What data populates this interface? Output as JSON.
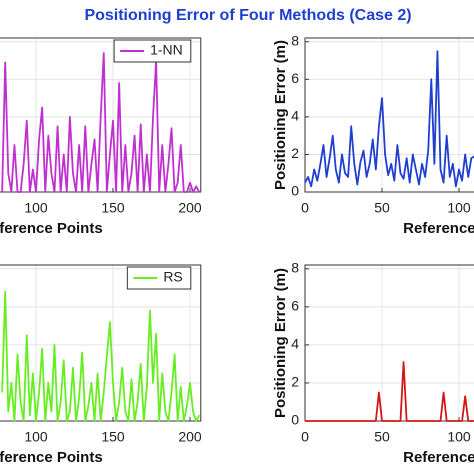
{
  "title": "Positioning Error of Four Methods (Case 2)",
  "chart_data": [
    {
      "type": "line",
      "xlabel": "Reference Points",
      "xlim": [
        0,
        207
      ],
      "ylim": [
        0,
        8.2
      ],
      "xticks": [
        100,
        150,
        200
      ],
      "yticks": [
        0,
        2,
        4,
        6,
        8
      ],
      "grid": true,
      "legend": "upper right",
      "x": [
        78,
        80,
        82,
        84,
        86,
        88,
        90,
        92,
        94,
        96,
        98,
        100,
        102,
        104,
        106,
        108,
        110,
        112,
        114,
        116,
        118,
        120,
        122,
        124,
        126,
        128,
        130,
        132,
        134,
        136,
        138,
        140,
        142,
        144,
        146,
        148,
        150,
        152,
        154,
        156,
        158,
        160,
        162,
        164,
        166,
        168,
        170,
        172,
        174,
        176,
        178,
        180,
        182,
        184,
        186,
        188,
        190,
        192,
        194,
        196,
        198,
        200,
        202,
        204,
        206
      ],
      "series": [
        {
          "name": "1-NN",
          "color": "#c030d0",
          "values": [
            0,
            6.9,
            1,
            0,
            2.5,
            0,
            0,
            1.5,
            3.8,
            0,
            1.2,
            0,
            2.8,
            4.5,
            0,
            3,
            1,
            0,
            3.5,
            0,
            2,
            0,
            4,
            1,
            0,
            2.5,
            0,
            3.5,
            0,
            1.5,
            2.8,
            0,
            4,
            7.4,
            0,
            2,
            3.8,
            0,
            5.8,
            0,
            2.5,
            0,
            1,
            3,
            0,
            3.6,
            0,
            2,
            0,
            4,
            7,
            0,
            2.5,
            0,
            1.5,
            3.4,
            0,
            0.5,
            2.5,
            0,
            0,
            0.5,
            0,
            0.3,
            0
          ]
        }
      ]
    },
    {
      "type": "line",
      "xlabel": "Reference Points",
      "ylabel": "Positioning Error (m)",
      "xlim": [
        0,
        207
      ],
      "ylim": [
        0,
        8.2
      ],
      "xticks": [
        0,
        50,
        100
      ],
      "yticks": [
        0,
        2,
        4,
        6,
        8
      ],
      "grid": true,
      "x": [
        0,
        2,
        4,
        6,
        8,
        10,
        12,
        14,
        16,
        18,
        20,
        22,
        24,
        26,
        28,
        30,
        32,
        34,
        36,
        38,
        40,
        42,
        44,
        46,
        48,
        50,
        52,
        54,
        56,
        58,
        60,
        62,
        64,
        66,
        68,
        70,
        72,
        74,
        76,
        78,
        80,
        82,
        84,
        86,
        88,
        90,
        92,
        94,
        96,
        98,
        100,
        102,
        104,
        106,
        108,
        110
      ],
      "series": [
        {
          "color": "#1f3fd0",
          "values": [
            0.5,
            0.8,
            0.3,
            1.2,
            0.6,
            1.5,
            2.5,
            0.8,
            1.8,
            3,
            1.2,
            0.5,
            2,
            1,
            0.8,
            3.5,
            1.5,
            0.4,
            1.6,
            2.2,
            0.8,
            1.5,
            2.8,
            1.2,
            3.5,
            5,
            2,
            0.9,
            1.5,
            0.6,
            2.5,
            1,
            0.7,
            1.8,
            0.5,
            2,
            1.2,
            0.4,
            1.5,
            0.8,
            2.2,
            6,
            1.5,
            7.5,
            1.2,
            0.5,
            3,
            0.8,
            1.5,
            0.3,
            1.2,
            0.6,
            2,
            0.8,
            1.8,
            1.9
          ]
        }
      ]
    },
    {
      "type": "line",
      "xlabel": "Reference Points",
      "xlim": [
        0,
        207
      ],
      "ylim": [
        0,
        8.2
      ],
      "xticks": [
        100,
        150,
        200
      ],
      "yticks": [
        0,
        2,
        4,
        6,
        8
      ],
      "grid": true,
      "legend": "upper right",
      "x": [
        78,
        80,
        82,
        84,
        86,
        88,
        90,
        92,
        94,
        96,
        98,
        100,
        102,
        104,
        106,
        108,
        110,
        112,
        114,
        116,
        118,
        120,
        122,
        124,
        126,
        128,
        130,
        132,
        134,
        136,
        138,
        140,
        142,
        144,
        146,
        148,
        150,
        152,
        154,
        156,
        158,
        160,
        162,
        164,
        166,
        168,
        170,
        172,
        174,
        176,
        178,
        180,
        182,
        184,
        186,
        188,
        190,
        192,
        194,
        196,
        198,
        200,
        202,
        204,
        206
      ],
      "series": [
        {
          "name": "RS",
          "color": "#66ee22",
          "values": [
            1.5,
            6.8,
            0.5,
            2,
            0,
            3.5,
            1,
            0,
            4.5,
            0.3,
            2.5,
            0,
            1.5,
            3.8,
            0,
            2,
            0.5,
            4,
            0,
            1,
            3.2,
            0,
            0.5,
            2.8,
            0,
            1.2,
            3.6,
            0,
            0.8,
            2,
            0,
            2.5,
            0,
            1.5,
            3.4,
            5.2,
            2,
            0,
            1,
            2.8,
            0.5,
            0,
            2.2,
            0,
            1,
            3,
            0,
            1.8,
            5.8,
            2,
            4.6,
            0,
            2.5,
            0.5,
            0,
            1.5,
            3.5,
            0,
            1.8,
            0,
            0.8,
            2,
            0.5,
            0,
            0.3
          ]
        }
      ]
    },
    {
      "type": "line",
      "xlabel": "Reference Points",
      "ylabel": "Positioning Error (m)",
      "xlim": [
        0,
        207
      ],
      "ylim": [
        0,
        8.2
      ],
      "xticks": [
        0,
        50,
        100
      ],
      "yticks": [
        0,
        2,
        4,
        6,
        8
      ],
      "grid": true,
      "x": [
        0,
        2,
        4,
        6,
        8,
        10,
        12,
        14,
        16,
        18,
        20,
        22,
        24,
        26,
        28,
        30,
        32,
        34,
        36,
        38,
        40,
        42,
        44,
        46,
        48,
        50,
        52,
        54,
        56,
        58,
        60,
        62,
        64,
        66,
        68,
        70,
        72,
        74,
        76,
        78,
        80,
        82,
        84,
        86,
        88,
        90,
        92,
        94,
        96,
        98,
        100,
        102,
        104,
        106,
        108,
        110
      ],
      "series": [
        {
          "color": "#d01818",
          "values": [
            0,
            0,
            0,
            0,
            0,
            0,
            0,
            0,
            0,
            0,
            0,
            0,
            0,
            0,
            0,
            0,
            0,
            0,
            0,
            0,
            0,
            0,
            0,
            0,
            1.5,
            0,
            0,
            0,
            0,
            0,
            0,
            0,
            3.1,
            0,
            0,
            0,
            0,
            0,
            0,
            0,
            0,
            0,
            0,
            0,
            0,
            1.5,
            0,
            0,
            0,
            0,
            0,
            0,
            1.3,
            0,
            0,
            0
          ]
        }
      ]
    }
  ]
}
